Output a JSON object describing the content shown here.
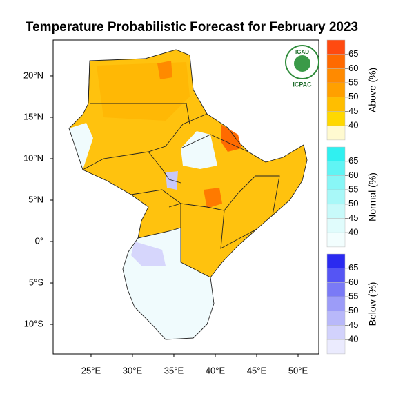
{
  "title": "Temperature Probabilistic Forecast for February 2023",
  "map": {
    "xlim": [
      20.42,
      52.5
    ],
    "ylim": [
      -13.58,
      24.33
    ],
    "xticks": [
      {
        "value": 25,
        "label": "25°E"
      },
      {
        "value": 30,
        "label": "30°E"
      },
      {
        "value": 35,
        "label": "35°E"
      },
      {
        "value": 40,
        "label": "40°E"
      },
      {
        "value": 45,
        "label": "45°E"
      },
      {
        "value": 50,
        "label": "50°E"
      }
    ],
    "yticks": [
      {
        "value": 20,
        "label": "20°N"
      },
      {
        "value": 15,
        "label": "15°N"
      },
      {
        "value": 10,
        "label": "10°N"
      },
      {
        "value": 5,
        "label": "5°N"
      },
      {
        "value": 0,
        "label": "0°"
      },
      {
        "value": -5,
        "label": "5°S"
      },
      {
        "value": -10,
        "label": "10°S"
      }
    ]
  },
  "legends": [
    {
      "title": "Above (%)",
      "labels": [
        65,
        60,
        55,
        50,
        45,
        40
      ],
      "colors": [
        "#ff4a10",
        "#ff6a00",
        "#ff8a00",
        "#ffa000",
        "#ffbe00",
        "#ffd800",
        "#fffad0"
      ]
    },
    {
      "title": "Normal (%)",
      "labels": [
        65,
        60,
        55,
        50,
        45,
        40
      ],
      "colors": [
        "#30f0f0",
        "#60f4f4",
        "#88f6f6",
        "#a8f8f8",
        "#c8fafa",
        "#e0fcfc",
        "#f2fefe"
      ]
    },
    {
      "title": "Below (%)",
      "labels": [
        65,
        60,
        55,
        50,
        45,
        40
      ],
      "colors": [
        "#2a2af0",
        "#5555f4",
        "#7a7af6",
        "#9c9cf8",
        "#b8b8fa",
        "#d2d2fc",
        "#ebebfe"
      ]
    }
  ],
  "logo": {
    "top": "IGAD",
    "bottom": "ICPAC"
  }
}
